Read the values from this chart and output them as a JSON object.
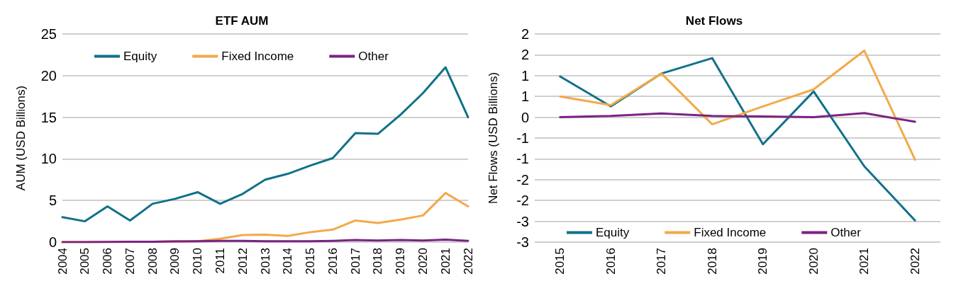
{
  "chart_data": [
    {
      "type": "line",
      "title": "ETF AUM",
      "ylabel": "AUM (USD Billions)",
      "categories": [
        "2004",
        "2005",
        "2006",
        "2007",
        "2008",
        "2009",
        "2010",
        "2011",
        "2012",
        "2013",
        "2014",
        "2015",
        "2016",
        "2017",
        "2018",
        "2019",
        "2020",
        "2021",
        "2022"
      ],
      "ylim": [
        0,
        25
      ],
      "yticks": [
        0,
        5,
        10,
        15,
        20,
        25
      ],
      "grid": "y",
      "legend": "top",
      "marker": "none",
      "series": [
        {
          "name": "Equity",
          "color": "#11718a",
          "values": [
            3.0,
            2.5,
            4.3,
            2.6,
            4.6,
            5.2,
            6.0,
            4.6,
            5.8,
            7.5,
            8.2,
            9.2,
            10.1,
            13.1,
            13.0,
            15.3,
            17.9,
            21.0,
            15.0
          ]
        },
        {
          "name": "Fixed Income",
          "color": "#f2a94a",
          "values": [
            0,
            0,
            0,
            0.05,
            0.05,
            0.1,
            0.1,
            0.4,
            0.85,
            0.9,
            0.75,
            1.2,
            1.5,
            2.6,
            2.3,
            2.7,
            3.2,
            5.9,
            4.3
          ]
        },
        {
          "name": "Other",
          "color": "#7a2384",
          "values": [
            0,
            0,
            0.02,
            0.05,
            0.05,
            0.08,
            0.1,
            0.15,
            0.15,
            0.1,
            0.1,
            0.1,
            0.15,
            0.25,
            0.2,
            0.25,
            0.2,
            0.3,
            0.15
          ]
        }
      ]
    },
    {
      "type": "line",
      "title": "Net Flows",
      "ylabel": "Net Flows (USD Billions)",
      "categories": [
        "2015",
        "2016",
        "2017",
        "2018",
        "2019",
        "2020",
        "2021",
        "2022"
      ],
      "ylim": [
        -3,
        2
      ],
      "yticks": [
        {
          "value": -3,
          "label": "-3"
        },
        {
          "value": -2.5,
          "label": "-3"
        },
        {
          "value": -2,
          "label": "-2"
        },
        {
          "value": -1.5,
          "label": "-2"
        },
        {
          "value": -1,
          "label": "-1"
        },
        {
          "value": -0.5,
          "label": "-1"
        },
        {
          "value": 0,
          "label": "0"
        },
        {
          "value": 0.5,
          "label": "1"
        },
        {
          "value": 1,
          "label": "1"
        },
        {
          "value": 1.5,
          "label": "2"
        },
        {
          "value": 2,
          "label": "2"
        }
      ],
      "grid": "y",
      "legend": "bottom",
      "marker": "none",
      "series": [
        {
          "name": "Equity",
          "color": "#11718a",
          "values": [
            0.98,
            0.26,
            1.05,
            1.42,
            -0.65,
            0.62,
            -1.18,
            -2.48
          ]
        },
        {
          "name": "Fixed Income",
          "color": "#f2a94a",
          "values": [
            0.5,
            0.29,
            1.05,
            -0.17,
            0.26,
            0.67,
            1.6,
            -1.02
          ]
        },
        {
          "name": "Other",
          "color": "#7a2384",
          "values": [
            0,
            0.03,
            0.09,
            0.03,
            0.02,
            0,
            0.1,
            -0.11
          ]
        }
      ]
    }
  ]
}
